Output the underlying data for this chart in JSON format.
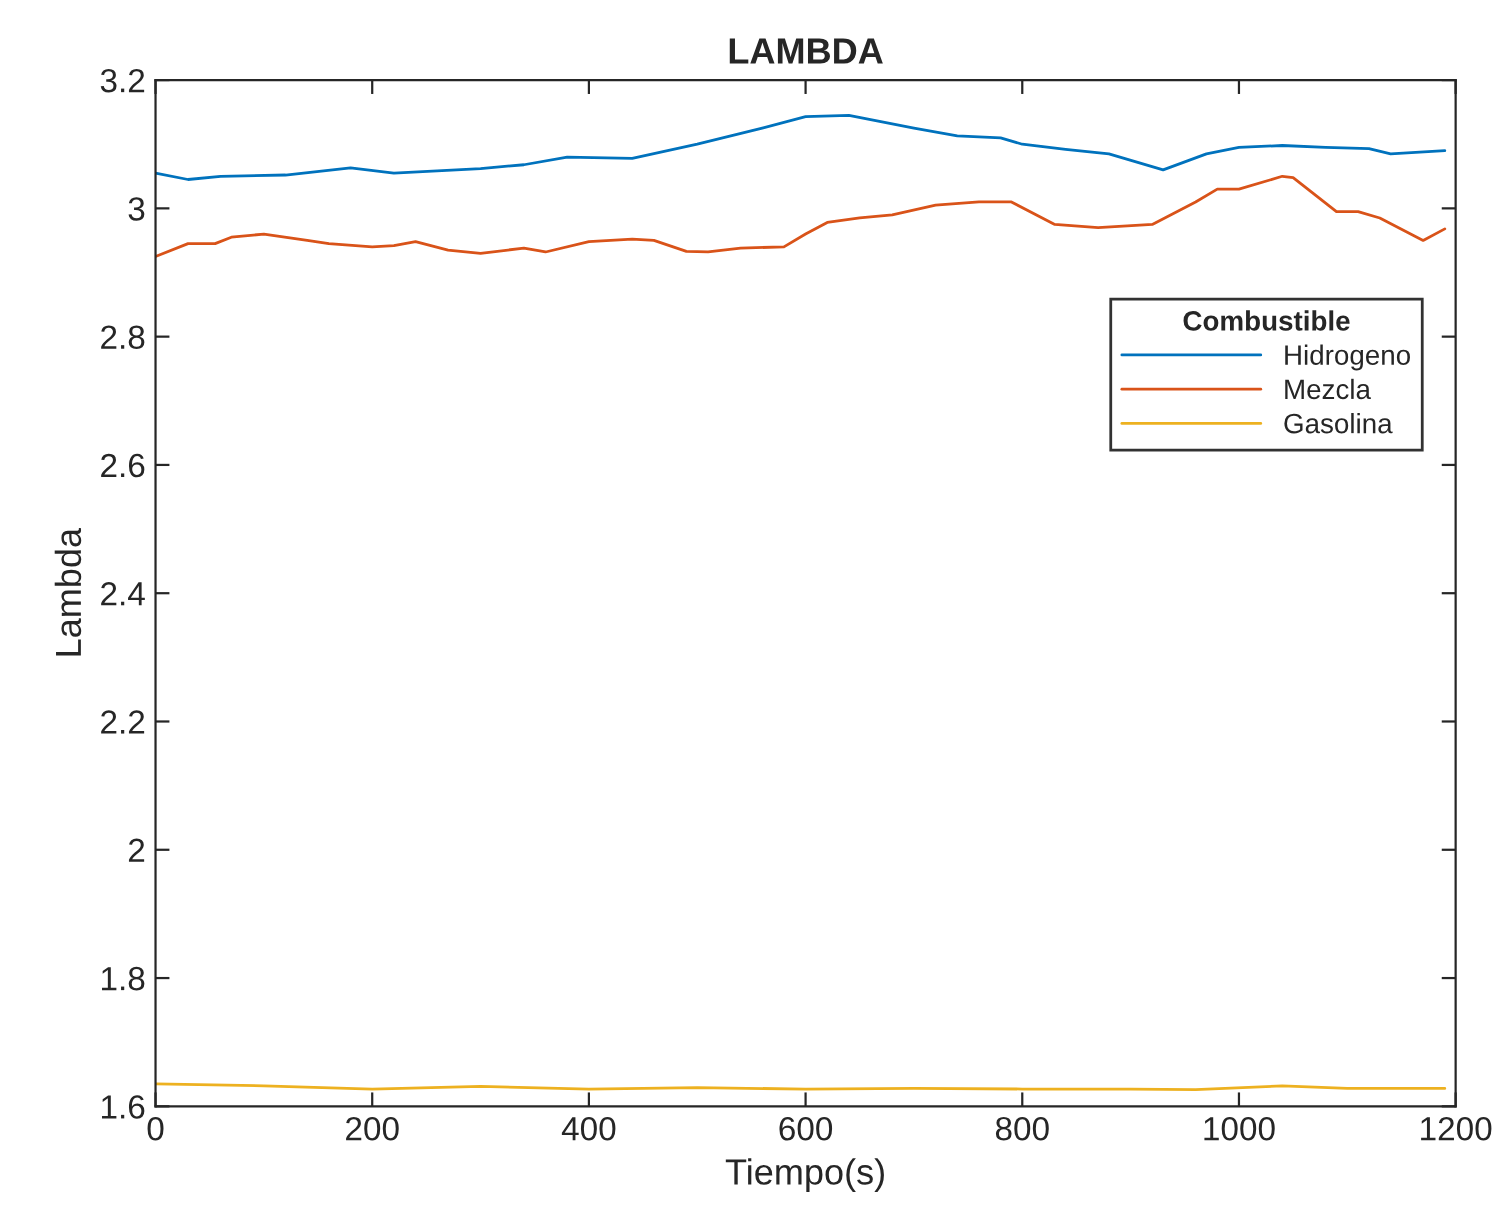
{
  "chart_data": {
    "type": "line",
    "title": "LAMBDA",
    "xlabel": "Tiempo(s)",
    "ylabel": "Lambda",
    "legend_title": "Combustible",
    "legend": "right",
    "grid": false,
    "xlim": [
      0,
      1200
    ],
    "ylim": [
      1.6,
      3.2
    ],
    "xticks": [
      0,
      200,
      400,
      600,
      800,
      1000,
      1200
    ],
    "yticks": [
      1.6,
      1.8,
      2,
      2.2,
      2.4,
      2.6,
      2.8,
      {
        "value": 3,
        "label": "3"
      },
      3.2
    ],
    "series": [
      {
        "name": "Hidrogeno",
        "color": "#0072bd",
        "x": [
          0,
          30,
          60,
          120,
          180,
          220,
          300,
          340,
          380,
          440,
          500,
          560,
          600,
          640,
          700,
          740,
          780,
          800,
          840,
          880,
          930,
          970,
          1000,
          1040,
          1080,
          1120,
          1140,
          1190
        ],
        "values": [
          3.055,
          3.045,
          3.05,
          3.052,
          3.063,
          3.055,
          3.062,
          3.068,
          3.08,
          3.078,
          3.1,
          3.125,
          3.143,
          3.145,
          3.125,
          3.113,
          3.11,
          3.1,
          3.092,
          3.085,
          3.06,
          3.085,
          3.095,
          3.098,
          3.095,
          3.093,
          3.085,
          3.09
        ]
      },
      {
        "name": "Mezcla",
        "color": "#d95319",
        "x": [
          0,
          30,
          55,
          70,
          100,
          140,
          160,
          200,
          220,
          240,
          270,
          300,
          340,
          360,
          400,
          440,
          460,
          490,
          510,
          540,
          580,
          600,
          620,
          650,
          680,
          720,
          760,
          790,
          830,
          870,
          920,
          960,
          980,
          1000,
          1040,
          1050,
          1090,
          1110,
          1130,
          1170,
          1190
        ],
        "values": [
          2.925,
          2.945,
          2.945,
          2.955,
          2.96,
          2.95,
          2.945,
          2.94,
          2.942,
          2.948,
          2.935,
          2.93,
          2.938,
          2.932,
          2.948,
          2.952,
          2.95,
          2.933,
          2.932,
          2.938,
          2.94,
          2.96,
          2.978,
          2.985,
          2.99,
          3.005,
          3.01,
          3.01,
          2.975,
          2.97,
          2.975,
          3.01,
          3.03,
          3.03,
          3.05,
          3.048,
          2.995,
          2.995,
          2.985,
          2.95,
          2.968
        ]
      },
      {
        "name": "Gasolina",
        "color": "#edb120",
        "x": [
          0,
          100,
          200,
          300,
          400,
          500,
          600,
          700,
          800,
          900,
          960,
          1040,
          1100,
          1190
        ],
        "values": [
          1.635,
          1.632,
          1.627,
          1.631,
          1.627,
          1.629,
          1.627,
          1.628,
          1.627,
          1.627,
          1.626,
          1.632,
          1.628,
          1.628
        ]
      }
    ]
  }
}
